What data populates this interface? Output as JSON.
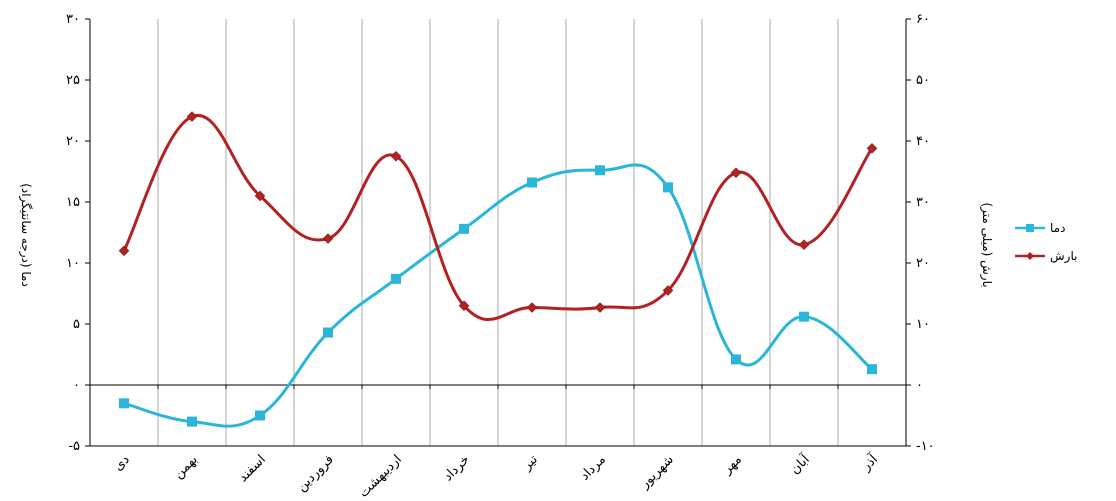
{
  "chart_data": {
    "type": "line",
    "categories": [
      "دی",
      "بهمن",
      "اسفند",
      "فروردین",
      "اردیبهشت",
      "خرداد",
      "تیر",
      "مرداد",
      "شهریور",
      "مهر",
      "آبان",
      "آذر"
    ],
    "y_left": {
      "label": "دما (درجه سانتیگراد)",
      "ylim": [
        -5,
        30
      ],
      "ticks": [
        -5,
        0,
        5,
        10,
        15,
        20,
        25,
        30
      ],
      "tick_labels": [
        "-۵",
        "۰",
        "۵",
        "۱۰",
        "۱۵",
        "۲۰",
        "۲۵",
        "۳۰"
      ]
    },
    "y_right": {
      "label": "بارش (میلی متر)",
      "ylim": [
        -10,
        60
      ],
      "ticks": [
        -10,
        0,
        10,
        20,
        30,
        40,
        50,
        60
      ],
      "tick_labels": [
        "-۱۰",
        "۰",
        "۱۰",
        "۲۰",
        "۳۰",
        "۴۰",
        "۵۰",
        "۶۰"
      ]
    },
    "series": [
      {
        "name": "دما",
        "axis": "left",
        "color": "#29b6d8",
        "marker": "square",
        "values": [
          -1.5,
          -3,
          -2.5,
          4.3,
          8.7,
          12.8,
          16.6,
          17.6,
          16.2,
          2.1,
          5.6,
          1.3
        ]
      },
      {
        "name": "بارش",
        "axis": "right",
        "color": "#b22222",
        "marker": "diamond",
        "values": [
          22,
          44,
          31,
          24,
          37.5,
          13,
          12.7,
          12.7,
          15.5,
          34.8,
          23,
          38.8
        ]
      }
    ],
    "grid": true,
    "legend_position": "right"
  }
}
